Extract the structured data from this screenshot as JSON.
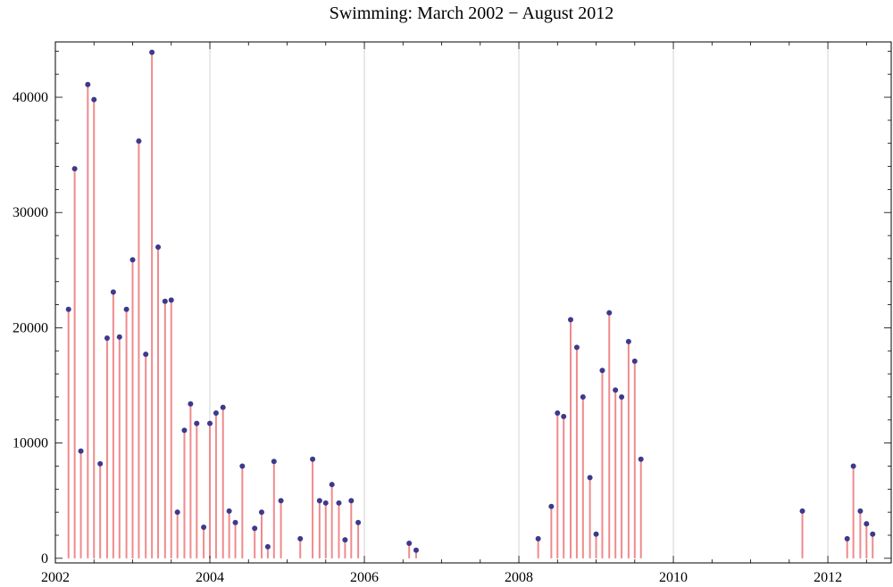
{
  "chart_data": {
    "type": "scatter",
    "style": "stem",
    "title": "Swimming: March 2002 − August 2012",
    "xlabel": "",
    "ylabel": "",
    "xlim": [
      2002.0,
      2012.82
    ],
    "ylim": [
      -400,
      44800
    ],
    "x_ticks": [
      2002,
      2004,
      2006,
      2008,
      2010,
      2012
    ],
    "x_tick_labels": [
      "2002",
      "2004",
      "2006",
      "2008",
      "2010",
      "2012"
    ],
    "y_ticks": [
      0,
      10000,
      20000,
      30000,
      40000
    ],
    "y_tick_labels": [
      "0",
      "10000",
      "20000",
      "30000",
      "40000"
    ],
    "grid": "vertical",
    "colors": {
      "stem": "#f08a8c",
      "point": "#3b3a8c",
      "grid": "#c8c8c8",
      "frame": "#000000"
    },
    "series": [
      {
        "name": "Swimming",
        "x": [
          2002.17,
          2002.25,
          2002.33,
          2002.42,
          2002.5,
          2002.58,
          2002.67,
          2002.75,
          2002.83,
          2002.92,
          2003.0,
          2003.08,
          2003.17,
          2003.25,
          2003.33,
          2003.42,
          2003.5,
          2003.58,
          2003.67,
          2003.75,
          2003.83,
          2003.92,
          2004.0,
          2004.08,
          2004.17,
          2004.25,
          2004.33,
          2004.42,
          2004.58,
          2004.67,
          2004.75,
          2004.83,
          2004.92,
          2005.17,
          2005.33,
          2005.42,
          2005.5,
          2005.58,
          2005.67,
          2005.75,
          2005.83,
          2005.92,
          2006.58,
          2006.67,
          2008.25,
          2008.42,
          2008.5,
          2008.58,
          2008.67,
          2008.75,
          2008.83,
          2008.92,
          2009.0,
          2009.08,
          2009.17,
          2009.25,
          2009.33,
          2009.42,
          2009.5,
          2009.58,
          2011.67,
          2012.25,
          2012.33,
          2012.42,
          2012.5,
          2012.58
        ],
        "y": [
          21600,
          33800,
          9300,
          41100,
          39800,
          8200,
          19100,
          23100,
          19200,
          21600,
          25900,
          36200,
          17700,
          43900,
          27000,
          22300,
          22400,
          4000,
          11100,
          13400,
          11700,
          2700,
          11700,
          12600,
          13100,
          4100,
          3100,
          8000,
          2600,
          4000,
          1000,
          8400,
          5000,
          1700,
          8600,
          5000,
          4800,
          6400,
          4800,
          1600,
          5000,
          3100,
          1300,
          700,
          1700,
          4500,
          12600,
          12300,
          20700,
          18300,
          14000,
          7000,
          2100,
          16300,
          21300,
          14600,
          14000,
          18800,
          17100,
          8600,
          4100,
          1700,
          8000,
          4100,
          3000,
          2100
        ]
      }
    ]
  }
}
